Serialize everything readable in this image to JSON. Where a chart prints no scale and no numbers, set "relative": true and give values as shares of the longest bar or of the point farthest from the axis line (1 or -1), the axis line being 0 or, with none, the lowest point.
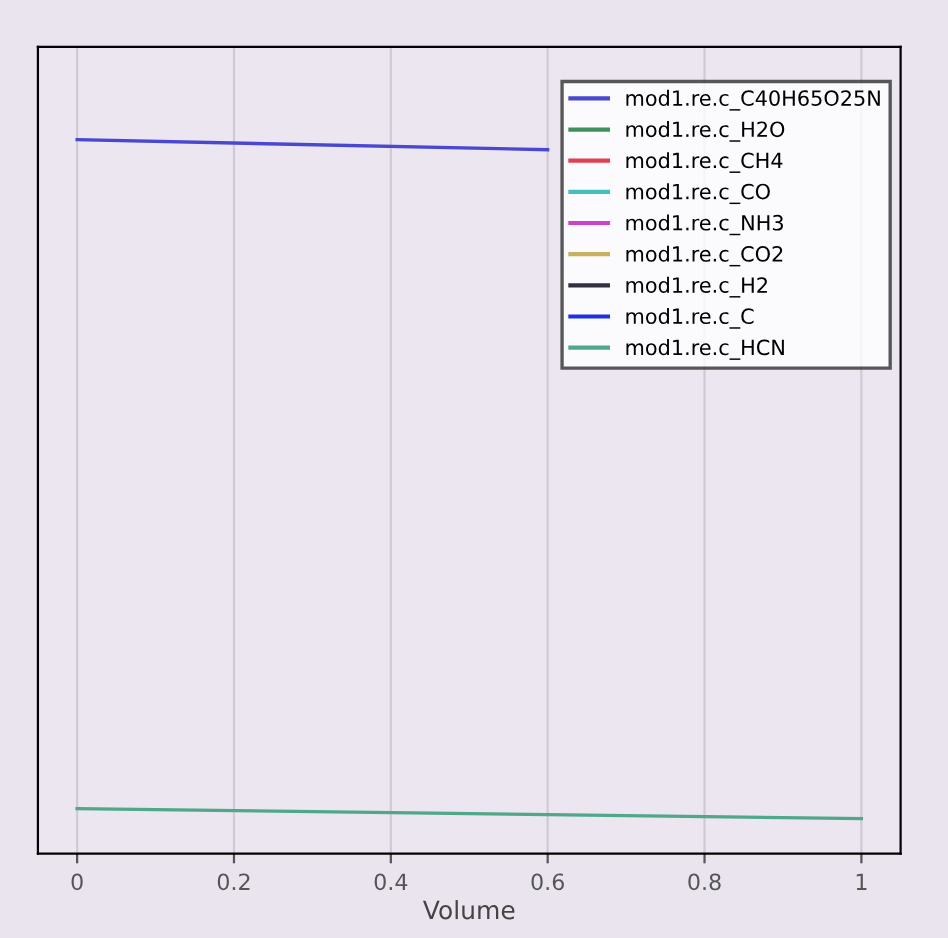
{
  "chart_data": {
    "type": "line",
    "relative": true,
    "xlabel": "Volume",
    "xlim": [
      -0.05,
      1.05
    ],
    "xticks": [
      0,
      0.2,
      0.4,
      0.6,
      0.8,
      1
    ],
    "grid": "x",
    "legend": "top right",
    "marker": "none",
    "line_style": "solid",
    "series": [
      {
        "name": "mod1.re.c_C40H65O25N",
        "color": "#4a48d0",
        "x": [
          0,
          0.6
        ],
        "values": [
          1.0,
          0.986
        ]
      },
      {
        "name": "mod1.re.c_H2O",
        "color": "#3f8f5f"
      },
      {
        "name": "mod1.re.c_CH4",
        "color": "#e04050"
      },
      {
        "name": "mod1.re.c_CO",
        "color": "#40c0c0"
      },
      {
        "name": "mod1.re.c_NH3",
        "color": "#d040d0"
      },
      {
        "name": "mod1.re.c_CO2",
        "color": "#c8b060"
      },
      {
        "name": "mod1.re.c_H2",
        "color": "#303040"
      },
      {
        "name": "mod1.re.c_C",
        "color": "#2030e0"
      },
      {
        "name": "mod1.re.c_HCN",
        "color": "#50a888",
        "x": [
          0,
          1
        ],
        "values": [
          0.063,
          0.049
        ]
      }
    ]
  }
}
